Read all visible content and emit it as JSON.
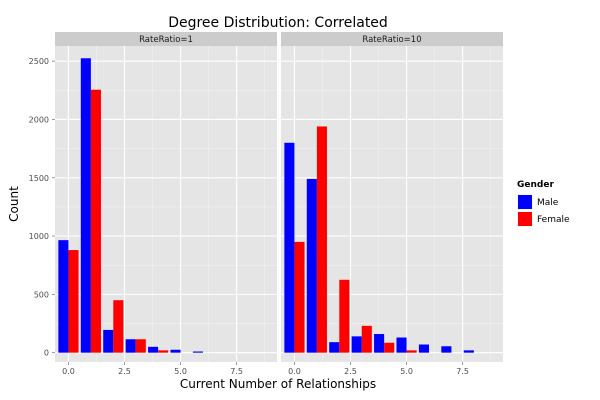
{
  "chart_data": {
    "type": "bar",
    "title": "Degree Distribution: Correlated",
    "xlabel": "Current Number of Relationships",
    "ylabel": "Count",
    "xlim": [
      -0.6,
      9.3
    ],
    "ylim": [
      -80,
      2630
    ],
    "x_ticks": [
      0,
      2.5,
      5,
      7.5
    ],
    "x_tick_labels": [
      "0.0",
      "2.5",
      "5.0",
      "7.5"
    ],
    "y_ticks": [
      0,
      500,
      1000,
      1500,
      2000,
      2500
    ],
    "y_tick_labels": [
      "0",
      "500",
      "1000",
      "1500",
      "2000",
      "2500"
    ],
    "grid": true,
    "legend_position": "right",
    "legend_title": "Gender",
    "categories": [
      0,
      1,
      2,
      3,
      4,
      5,
      6,
      7,
      8
    ],
    "series_meta": [
      {
        "name": "Male",
        "color": "#0000ff"
      },
      {
        "name": "Female",
        "color": "#ff0000"
      }
    ],
    "panels": [
      {
        "label": "RateRatio=1",
        "series": [
          {
            "name": "Male",
            "values": [
              965,
              2525,
              195,
              115,
              50,
              25,
              10,
              0,
              0
            ]
          },
          {
            "name": "Female",
            "values": [
              880,
              2255,
              450,
              115,
              20,
              0,
              0,
              0,
              0
            ]
          }
        ]
      },
      {
        "label": "RateRatio=10",
        "series": [
          {
            "name": "Male",
            "values": [
              1800,
              1490,
              90,
              140,
              160,
              130,
              70,
              55,
              20
            ]
          },
          {
            "name": "Female",
            "values": [
              950,
              1940,
              625,
              230,
              85,
              20,
              0,
              0,
              0
            ]
          }
        ]
      }
    ]
  }
}
